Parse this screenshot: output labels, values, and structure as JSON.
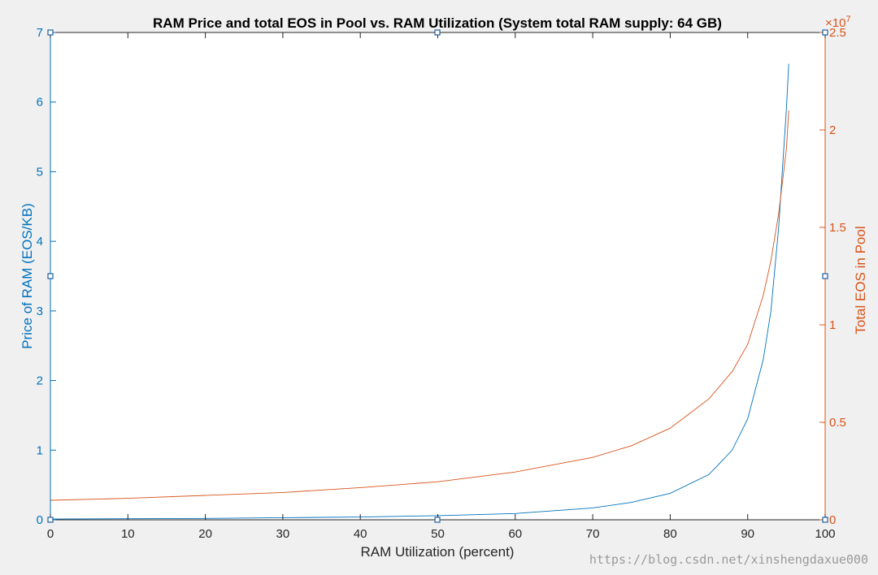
{
  "chart_data": {
    "type": "line",
    "title": "RAM Price and total EOS in Pool vs. RAM Utilization (System total RAM supply: 64 GB)",
    "xlabel": "RAM Utilization (percent)",
    "ylabel_left": "Price of RAM (EOS/KB)",
    "ylabel_right": "Total EOS in Pool",
    "right_exponent_base": "×10",
    "right_exponent_power": "7",
    "xlim": [
      0,
      100
    ],
    "ylim_left": [
      0,
      7
    ],
    "ylim_right": [
      0,
      2.5
    ],
    "xticks": [
      "0",
      "10",
      "20",
      "30",
      "40",
      "50",
      "60",
      "70",
      "80",
      "90",
      "100"
    ],
    "yticks_left": [
      "0",
      "1",
      "2",
      "3",
      "4",
      "5",
      "6",
      "7"
    ],
    "yticks_right": [
      "0",
      "0.5",
      "1",
      "1.5",
      "2",
      "2.5"
    ],
    "grid": false,
    "x": [
      0,
      10,
      20,
      30,
      40,
      50,
      60,
      70,
      75,
      80,
      85,
      88,
      90,
      92,
      93,
      94,
      95,
      95.3
    ],
    "series": [
      {
        "axis": "left",
        "color": "#0072bd",
        "values": [
          0.01,
          0.015,
          0.02,
          0.03,
          0.04,
          0.06,
          0.09,
          0.17,
          0.25,
          0.38,
          0.65,
          1.0,
          1.45,
          2.3,
          3.0,
          4.2,
          5.9,
          6.55
        ]
      },
      {
        "axis": "right",
        "color": "#d95319",
        "values": [
          0.1,
          0.11,
          0.125,
          0.14,
          0.165,
          0.195,
          0.245,
          0.32,
          0.38,
          0.47,
          0.62,
          0.76,
          0.9,
          1.15,
          1.33,
          1.57,
          1.9,
          2.1
        ]
      }
    ]
  },
  "watermark": "https://blog.csdn.net/xinshengdaxue000"
}
